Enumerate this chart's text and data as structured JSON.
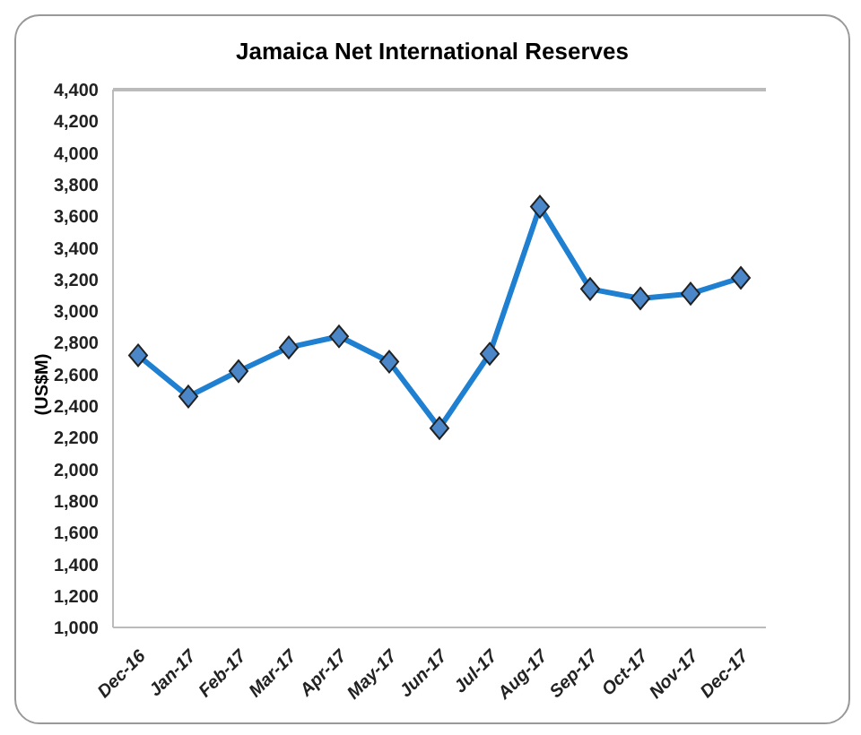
{
  "chart_data": {
    "type": "line",
    "title": "Jamaica Net International Reserves",
    "ylabel": "(US$M)",
    "categories": [
      "Dec-16",
      "Jan-17",
      "Feb-17",
      "Mar-17",
      "Apr-17",
      "May-17",
      "Jun-17",
      "Jul-17",
      "Aug-17",
      "Sep-17",
      "Oct-17",
      "Nov-17",
      "Dec-17"
    ],
    "series": [
      {
        "color": "#1f7fd0",
        "values": [
          2720,
          2460,
          2620,
          2770,
          2840,
          2680,
          2260,
          2730,
          3660,
          3140,
          3080,
          3110,
          3210
        ]
      }
    ],
    "ylim": [
      1000,
      4400
    ],
    "yticks": [
      {
        "value": 1000,
        "label": "1,000"
      },
      {
        "value": 1200,
        "label": "1,200"
      },
      {
        "value": 1400,
        "label": "1,400"
      },
      {
        "value": 1600,
        "label": "1,600"
      },
      {
        "value": 1800,
        "label": "1,800"
      },
      {
        "value": 2000,
        "label": "2,000"
      },
      {
        "value": 2200,
        "label": "2,200"
      },
      {
        "value": 2400,
        "label": "2,400"
      },
      {
        "value": 2600,
        "label": "2,600"
      },
      {
        "value": 2800,
        "label": "2,800"
      },
      {
        "value": 3000,
        "label": "3,000"
      },
      {
        "value": 3200,
        "label": "3,200"
      },
      {
        "value": 3400,
        "label": "3,400"
      },
      {
        "value": 3600,
        "label": "3,600"
      },
      {
        "value": 3800,
        "label": "3,800"
      },
      {
        "value": 4000,
        "label": "4,000"
      },
      {
        "value": 4200,
        "label": "4,200"
      },
      {
        "value": 4400,
        "label": "4,400"
      }
    ],
    "grid": false,
    "legend": false,
    "marker": "diamond",
    "line_style": "solid"
  }
}
